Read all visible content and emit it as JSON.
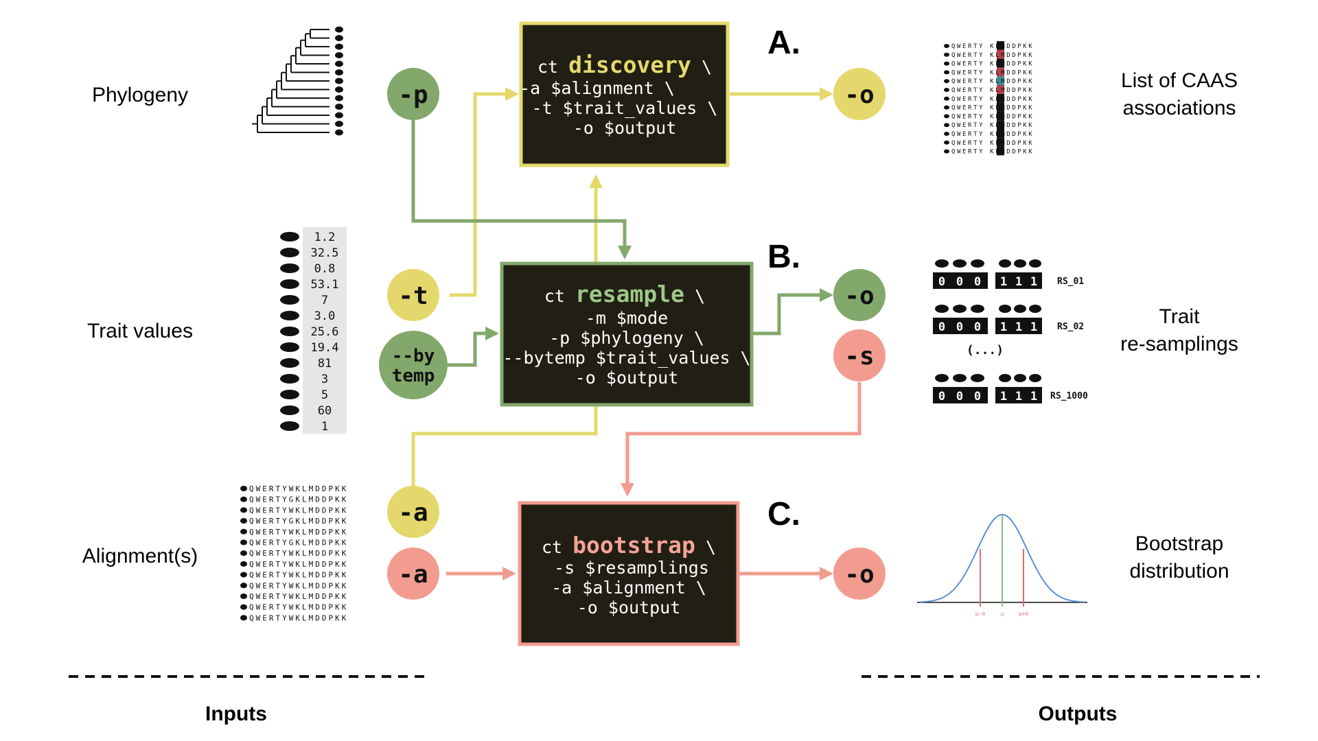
{
  "colors": {
    "yellow": "#e4d86c",
    "green": "#82a86b",
    "salmon": "#f29c90",
    "box_fill": "#211e13",
    "accent_teal": "#3d8a95",
    "accent_red": "#b5424d"
  },
  "inputs": {
    "phylogeny_label": "Phylogeny",
    "trait_values_label": "Trait values",
    "alignment_label": "Alignment(s)",
    "trait_values": [
      "1.2",
      "32.5",
      "0.8",
      "53.1",
      "7",
      "3.0",
      "25.6",
      "19.4",
      "81",
      "3",
      "5",
      "60",
      "1"
    ],
    "sequences": [
      "QWERTYWKLMDDPKK",
      "QWERTYGKLMDDPKK",
      "QWERTYWKLMDDPKK",
      "QWERTYGKLMDDPKK",
      "QWERTYWKLMDDPKK",
      "QWERTYGKLMDDPKK",
      "QWERTYWKLMDDPKK",
      "QWERTYWKLMDDPKK",
      "QWERTYWKLMDDPKK",
      "QWERTYWKLMDDPKK",
      "QWERTYWKLMDDPKK",
      "QWERTYWKLMDDPKK",
      "QWERTYWKLMDDPKK"
    ]
  },
  "outputs": {
    "caas_label_line1": "List of CAAS",
    "caas_label_line2": "associations",
    "resampling_label_line1": "Trait",
    "resampling_label_line2": "re-samplings",
    "bootstrap_label_line1": "Bootstrap",
    "bootstrap_label_line2": "distribution",
    "caas_sequences": [
      {
        "left": "QWERTY",
        "mid": "W",
        "right": "KLMDDPKK"
      },
      {
        "left": "QWERTY",
        "mid": "G",
        "right": "KLMDDPKK"
      },
      {
        "left": "QWERTY",
        "mid": "W",
        "right": "KLMDDPKK"
      },
      {
        "left": "QWERTY",
        "mid": "G",
        "right": "KLMDDPKK"
      },
      {
        "left": "QWERTY",
        "mid": "W",
        "right": "KLMDDPKK"
      },
      {
        "left": "QWERTY",
        "mid": "G",
        "right": "KLMDDPKK"
      },
      {
        "left": "QWERTY",
        "mid": "W",
        "right": "KLMDDPKK"
      },
      {
        "left": "QWERTY",
        "mid": "W",
        "right": "KLMDDPKK"
      },
      {
        "left": "QWERTY",
        "mid": "W",
        "right": "KLMDDPKK"
      },
      {
        "left": "QWERTY",
        "mid": "W",
        "right": "KLMDDPKK"
      },
      {
        "left": "QWERTY",
        "mid": "W",
        "right": "KLMDDPKK"
      },
      {
        "left": "QWERTY",
        "mid": "W",
        "right": "KLMDDPKK"
      },
      {
        "left": "QWERTY",
        "mid": "W",
        "right": "KLMDDPKK"
      }
    ],
    "resamplings": [
      {
        "zeros": [
          "0",
          "0",
          "0"
        ],
        "ones": [
          "1",
          "1",
          "1"
        ],
        "name": "RS_01"
      },
      {
        "zeros": [
          "0",
          "0",
          "0"
        ],
        "ones": [
          "1",
          "1",
          "1"
        ],
        "name": "RS_02"
      },
      {
        "zeros": [
          "0",
          "0",
          "0"
        ],
        "ones": [
          "1",
          "1",
          "1"
        ],
        "name": "RS_1000"
      }
    ],
    "ellipsis": "(...)",
    "bootstrap_ticks": [
      "μ-σ",
      "μ",
      "μ+σ"
    ]
  },
  "commands": {
    "discovery": {
      "letter": "A.",
      "prefix": "ct",
      "name": "discovery",
      "slash": "\\",
      "lines": [
        "-a $alignment \\",
        "-t $trait_values \\",
        "-o $output"
      ]
    },
    "resample": {
      "letter": "B.",
      "prefix": "ct",
      "name": "resample",
      "slash": "\\",
      "lines": [
        "-m $mode",
        "-p $phylogeny \\",
        "--bytemp $trait_values \\",
        "-o $output"
      ]
    },
    "bootstrap": {
      "letter": "C.",
      "prefix": "ct",
      "name": "bootstrap",
      "slash": "\\",
      "lines": [
        "-s $resamplings",
        "-a $alignment \\",
        "-o $output"
      ]
    }
  },
  "flags": {
    "p": "-p",
    "t": "-t",
    "bytemp_line1": "--by",
    "bytemp_line2": "temp",
    "a_yellow": "-a",
    "a_salmon": "-a",
    "o_discovery": "-o",
    "o_resample": "-o",
    "s": "-s",
    "o_bootstrap": "-o"
  },
  "footer": {
    "inputs": "Inputs",
    "outputs": "Outputs"
  }
}
